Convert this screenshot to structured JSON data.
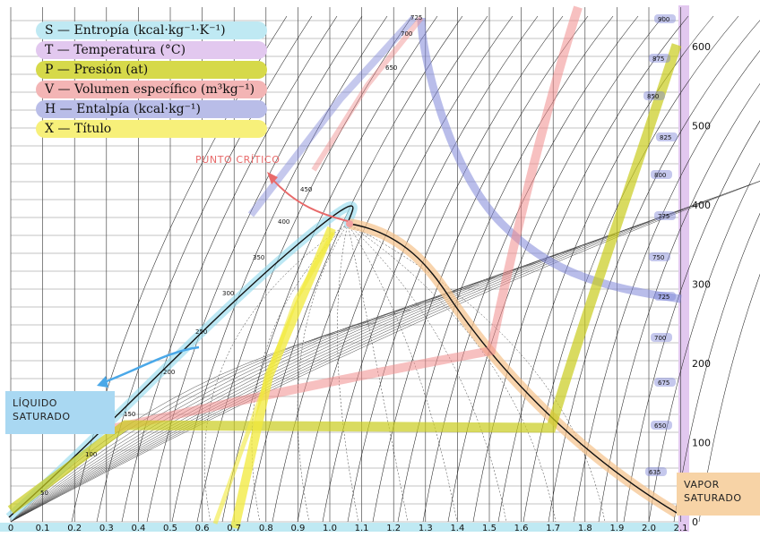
{
  "legend": {
    "items": [
      {
        "text": "S — Entropía  (kcal·kg⁻¹·K⁻¹)",
        "color": "#bfe9f3"
      },
      {
        "text": "T — Temperatura  (°C)",
        "color": "#e2c8ef"
      },
      {
        "text": "P — Presión  (at)",
        "color": "#d6d94a"
      },
      {
        "text": "V — Volumen específico  (m³kg⁻¹)",
        "color": "#f3b5b5"
      },
      {
        "text": "H — Entalpía  (kcal·kg⁻¹)",
        "color": "#b9bde8"
      },
      {
        "text": "X — Título",
        "color": "#f7f07a"
      }
    ]
  },
  "callouts": {
    "punto_critico": "PUNTO CRÍTICO",
    "liquido_line1": "LÍQUIDO",
    "liquido_line2": "SATURADO",
    "vapor_line1": "VAPOR",
    "vapor_line2": "SATURADO"
  },
  "axes": {
    "x_ticks": [
      "0",
      "0.1",
      "0.2",
      "0.3",
      "0.4",
      "0.5",
      "0.6",
      "0.7",
      "0.8",
      "0.9",
      "1.0",
      "1.1",
      "1.2",
      "1.3",
      "1.4",
      "1.5",
      "1.6",
      "1.7",
      "1.8",
      "1.9",
      "2.0",
      "2.1"
    ],
    "y_ticks": [
      "0",
      "100",
      "200",
      "300",
      "400",
      "500",
      "600"
    ],
    "temperature_labels": [
      "725",
      "700",
      "650",
      "450",
      "400",
      "350",
      "300",
      "250",
      "200",
      "150",
      "100",
      "50"
    ],
    "enthalpy_labels": [
      "900",
      "875",
      "850",
      "825",
      "800",
      "775",
      "750",
      "725",
      "700",
      "675",
      "650",
      "635"
    ]
  },
  "colors": {
    "entropy": "#8fd8ec",
    "temperature": "#c99ae0",
    "pressure": "#c9cc1c",
    "volume": "#f08c8c",
    "enthalpy": "#7f86d8",
    "quality": "#f2ea3a",
    "saturation_vapor": "#f5c28a",
    "critical_arrow": "#e86a6a",
    "liquid_arrow": "#4aa8e8"
  }
}
